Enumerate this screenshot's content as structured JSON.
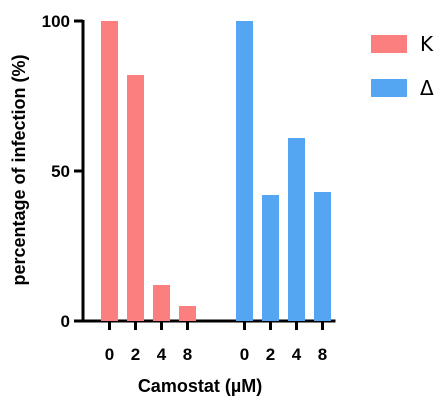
{
  "chart_data": {
    "type": "bar",
    "xlabel": "Camostat (µM)",
    "ylabel": "percentage of infection (%)",
    "ylim": [
      0,
      100
    ],
    "yticks": [
      0,
      50,
      100
    ],
    "grid": false,
    "legend_position": "top-right",
    "categories": [
      "0",
      "2",
      "4",
      "8"
    ],
    "series": [
      {
        "name": "K",
        "color": "#fc7f7f",
        "values": [
          100,
          82,
          12,
          5
        ]
      },
      {
        "name": "Δ",
        "color": "#55a6f2",
        "values": [
          100,
          42,
          61,
          43
        ]
      }
    ]
  }
}
